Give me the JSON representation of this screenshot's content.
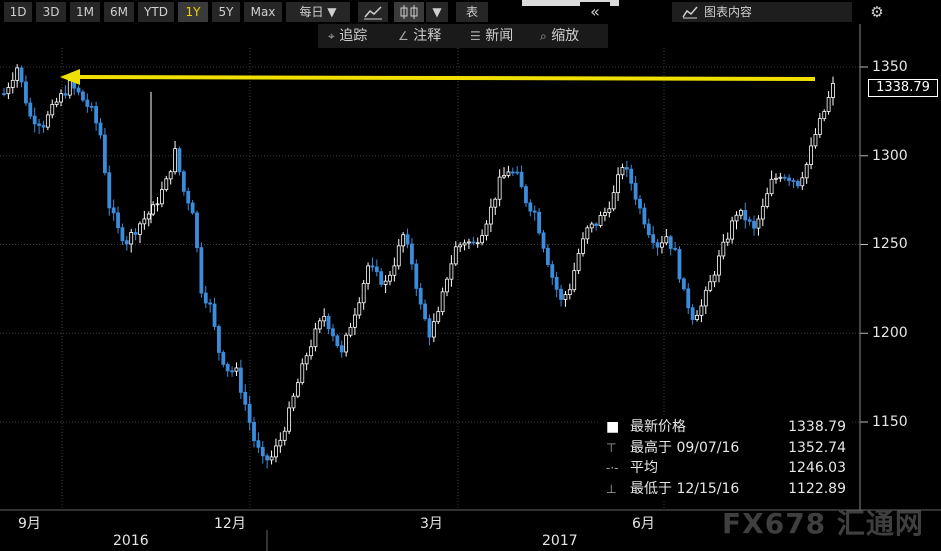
{
  "toolbar": {
    "periods": [
      "1D",
      "3D",
      "1M",
      "6M",
      "YTD",
      "1Y",
      "5Y",
      "Max"
    ],
    "active_period": "1Y",
    "frequency": "每日 ▼",
    "chart_type_icon": "line-chart-icon",
    "candle_icon": "candlestick-icon",
    "dropdown_arrow": "▼",
    "table_label": "表",
    "collapse_icon": "double-chevron-left-icon",
    "chart_content_label": "图表内容",
    "settings_icon": "gear-icon"
  },
  "toolbar2": {
    "track_label": "追踪",
    "annotate_label": "注释",
    "news_label": "新闻",
    "zoom_label": "缩放"
  },
  "legend": {
    "latest_label": "最新价格",
    "latest_value": "1338.79",
    "high_label": "最高于 09/07/16",
    "high_value": "1352.74",
    "avg_label": "平均",
    "avg_value": "1246.03",
    "low_label": "最低于 12/15/16",
    "low_value": "1122.89"
  },
  "last_price_tag": "1338.79",
  "watermark": "FX678 汇通网",
  "colors": {
    "up": "#ffffff",
    "down": "#3c8cdc",
    "arrow": "#f0e000",
    "grid": "#3a3a3a"
  },
  "chart_data": {
    "type": "candlestick",
    "x_months": [
      "9月",
      "12月",
      "3月",
      "6月"
    ],
    "x_years": [
      "2016",
      "2017"
    ],
    "y_ticks": [
      1150,
      1200,
      1250,
      1300,
      1350
    ],
    "ylim": [
      1115,
      1362
    ],
    "annotation": "horizontal yellow arrow from latest price back to 09/07/16 high",
    "close_path": [
      [
        0,
        1335
      ],
      [
        3,
        1350
      ],
      [
        6,
        1322
      ],
      [
        9,
        1318
      ],
      [
        12,
        1330
      ],
      [
        15,
        1340
      ],
      [
        17,
        1335
      ],
      [
        20,
        1325
      ],
      [
        22,
        1312
      ],
      [
        24,
        1272
      ],
      [
        26,
        1258
      ],
      [
        28,
        1252
      ],
      [
        31,
        1262
      ],
      [
        34,
        1270
      ],
      [
        37,
        1285
      ],
      [
        39,
        1302
      ],
      [
        41,
        1280
      ],
      [
        43,
        1270
      ],
      [
        45,
        1225
      ],
      [
        47,
        1215
      ],
      [
        49,
        1190
      ],
      [
        51,
        1180
      ],
      [
        53,
        1178
      ],
      [
        55,
        1160
      ],
      [
        57,
        1140
      ],
      [
        59,
        1128
      ],
      [
        61,
        1130
      ],
      [
        63,
        1140
      ],
      [
        65,
        1155
      ],
      [
        67,
        1172
      ],
      [
        69,
        1188
      ],
      [
        71,
        1200
      ],
      [
        73,
        1210
      ],
      [
        75,
        1200
      ],
      [
        77,
        1188
      ],
      [
        79,
        1205
      ],
      [
        81,
        1220
      ],
      [
        83,
        1238
      ],
      [
        85,
        1232
      ],
      [
        87,
        1228
      ],
      [
        89,
        1240
      ],
      [
        91,
        1255
      ],
      [
        93,
        1240
      ],
      [
        95,
        1215
      ],
      [
        97,
        1200
      ],
      [
        99,
        1210
      ],
      [
        101,
        1232
      ],
      [
        103,
        1248
      ],
      [
        105,
        1252
      ],
      [
        107,
        1250
      ],
      [
        109,
        1258
      ],
      [
        111,
        1270
      ],
      [
        113,
        1285
      ],
      [
        115,
        1292
      ],
      [
        117,
        1288
      ],
      [
        119,
        1275
      ],
      [
        121,
        1268
      ],
      [
        123,
        1250
      ],
      [
        125,
        1232
      ],
      [
        127,
        1218
      ],
      [
        129,
        1226
      ],
      [
        131,
        1245
      ],
      [
        133,
        1258
      ],
      [
        135,
        1262
      ],
      [
        137,
        1268
      ],
      [
        139,
        1278
      ],
      [
        141,
        1295
      ],
      [
        143,
        1285
      ],
      [
        145,
        1270
      ],
      [
        147,
        1258
      ],
      [
        149,
        1250
      ],
      [
        151,
        1255
      ],
      [
        153,
        1245
      ],
      [
        155,
        1222
      ],
      [
        157,
        1210
      ],
      [
        159,
        1215
      ],
      [
        161,
        1228
      ],
      [
        163,
        1242
      ],
      [
        165,
        1255
      ],
      [
        167,
        1268
      ],
      [
        169,
        1265
      ],
      [
        171,
        1258
      ],
      [
        173,
        1270
      ],
      [
        175,
        1285
      ],
      [
        177,
        1290
      ],
      [
        179,
        1288
      ],
      [
        181,
        1285
      ],
      [
        183,
        1295
      ],
      [
        185,
        1312
      ],
      [
        187,
        1325
      ],
      [
        189,
        1339
      ]
    ]
  }
}
